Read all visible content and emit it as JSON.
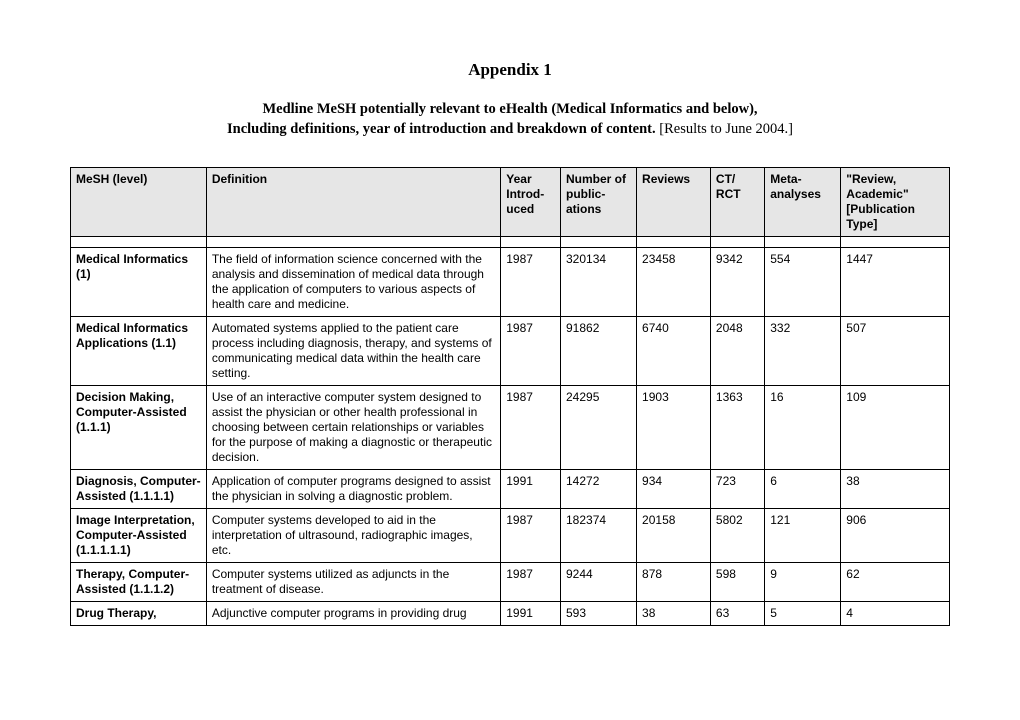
{
  "title": "Appendix 1",
  "subtitle_bold1": "Medline MeSH potentially relevant to eHealth (Medical Informatics and below),",
  "subtitle_bold2": "Including definitions, year of introduction and breakdown of content.",
  "subtitle_plain": " [Results to June 2004.]",
  "columns": [
    "MeSH (level)",
    "Definition",
    "Year Introd-uced",
    "Number of public-ations",
    "Reviews",
    "CT/ RCT",
    "Meta-analyses",
    "\"Review, Academic\" [Publication Type]"
  ],
  "rows": [
    {
      "mesh": "Medical Informatics (1)",
      "def": "The field of information science concerned with the analysis and dissemination of medical data through the application of computers to various aspects of health care and medicine.",
      "year": "1987",
      "num": "320134",
      "rev": "23458",
      "ct": "9342",
      "meta": "554",
      "pub": "1447"
    },
    {
      "mesh": "Medical Informatics Applications (1.1)",
      "def": "Automated systems applied to the patient care process including diagnosis, therapy, and systems of communicating medical data within the health care setting.",
      "year": "1987",
      "num": "91862",
      "rev": "6740",
      "ct": "2048",
      "meta": "332",
      "pub": "507"
    },
    {
      "mesh": "Decision Making, Computer-Assisted (1.1.1)",
      "def": "Use of an interactive computer system designed to assist the physician or other health professional in choosing between certain relationships or variables for the purpose of making a diagnostic or therapeutic decision.",
      "year": "1987",
      "num": "24295",
      "rev": "1903",
      "ct": "1363",
      "meta": "16",
      "pub": "109"
    },
    {
      "mesh": "Diagnosis, Computer-Assisted (1.1.1.1)",
      "def": "Application of computer programs designed to assist the physician in solving a diagnostic problem.",
      "year": "1991",
      "num": "14272",
      "rev": "934",
      "ct": "723",
      "meta": "6",
      "pub": "38"
    },
    {
      "mesh": "Image Interpretation, Computer-Assisted (1.1.1.1.1)",
      "def": "Computer systems developed to aid in the interpretation of ultrasound, radiographic images, etc.",
      "year": "1987",
      "num": "182374",
      "rev": "20158",
      "ct": "5802",
      "meta": "121",
      "pub": "906"
    },
    {
      "mesh": "Therapy, Computer-Assisted (1.1.1.2)",
      "def": "Computer systems utilized as adjuncts in the treatment of disease.",
      "year": "1987",
      "num": "9244",
      "rev": "878",
      "ct": "598",
      "meta": "9",
      "pub": "62"
    },
    {
      "mesh": "Drug Therapy,",
      "def": "Adjunctive computer programs in providing drug",
      "year": "1991",
      "num": "593",
      "rev": "38",
      "ct": "63",
      "meta": "5",
      "pub": "4"
    }
  ]
}
